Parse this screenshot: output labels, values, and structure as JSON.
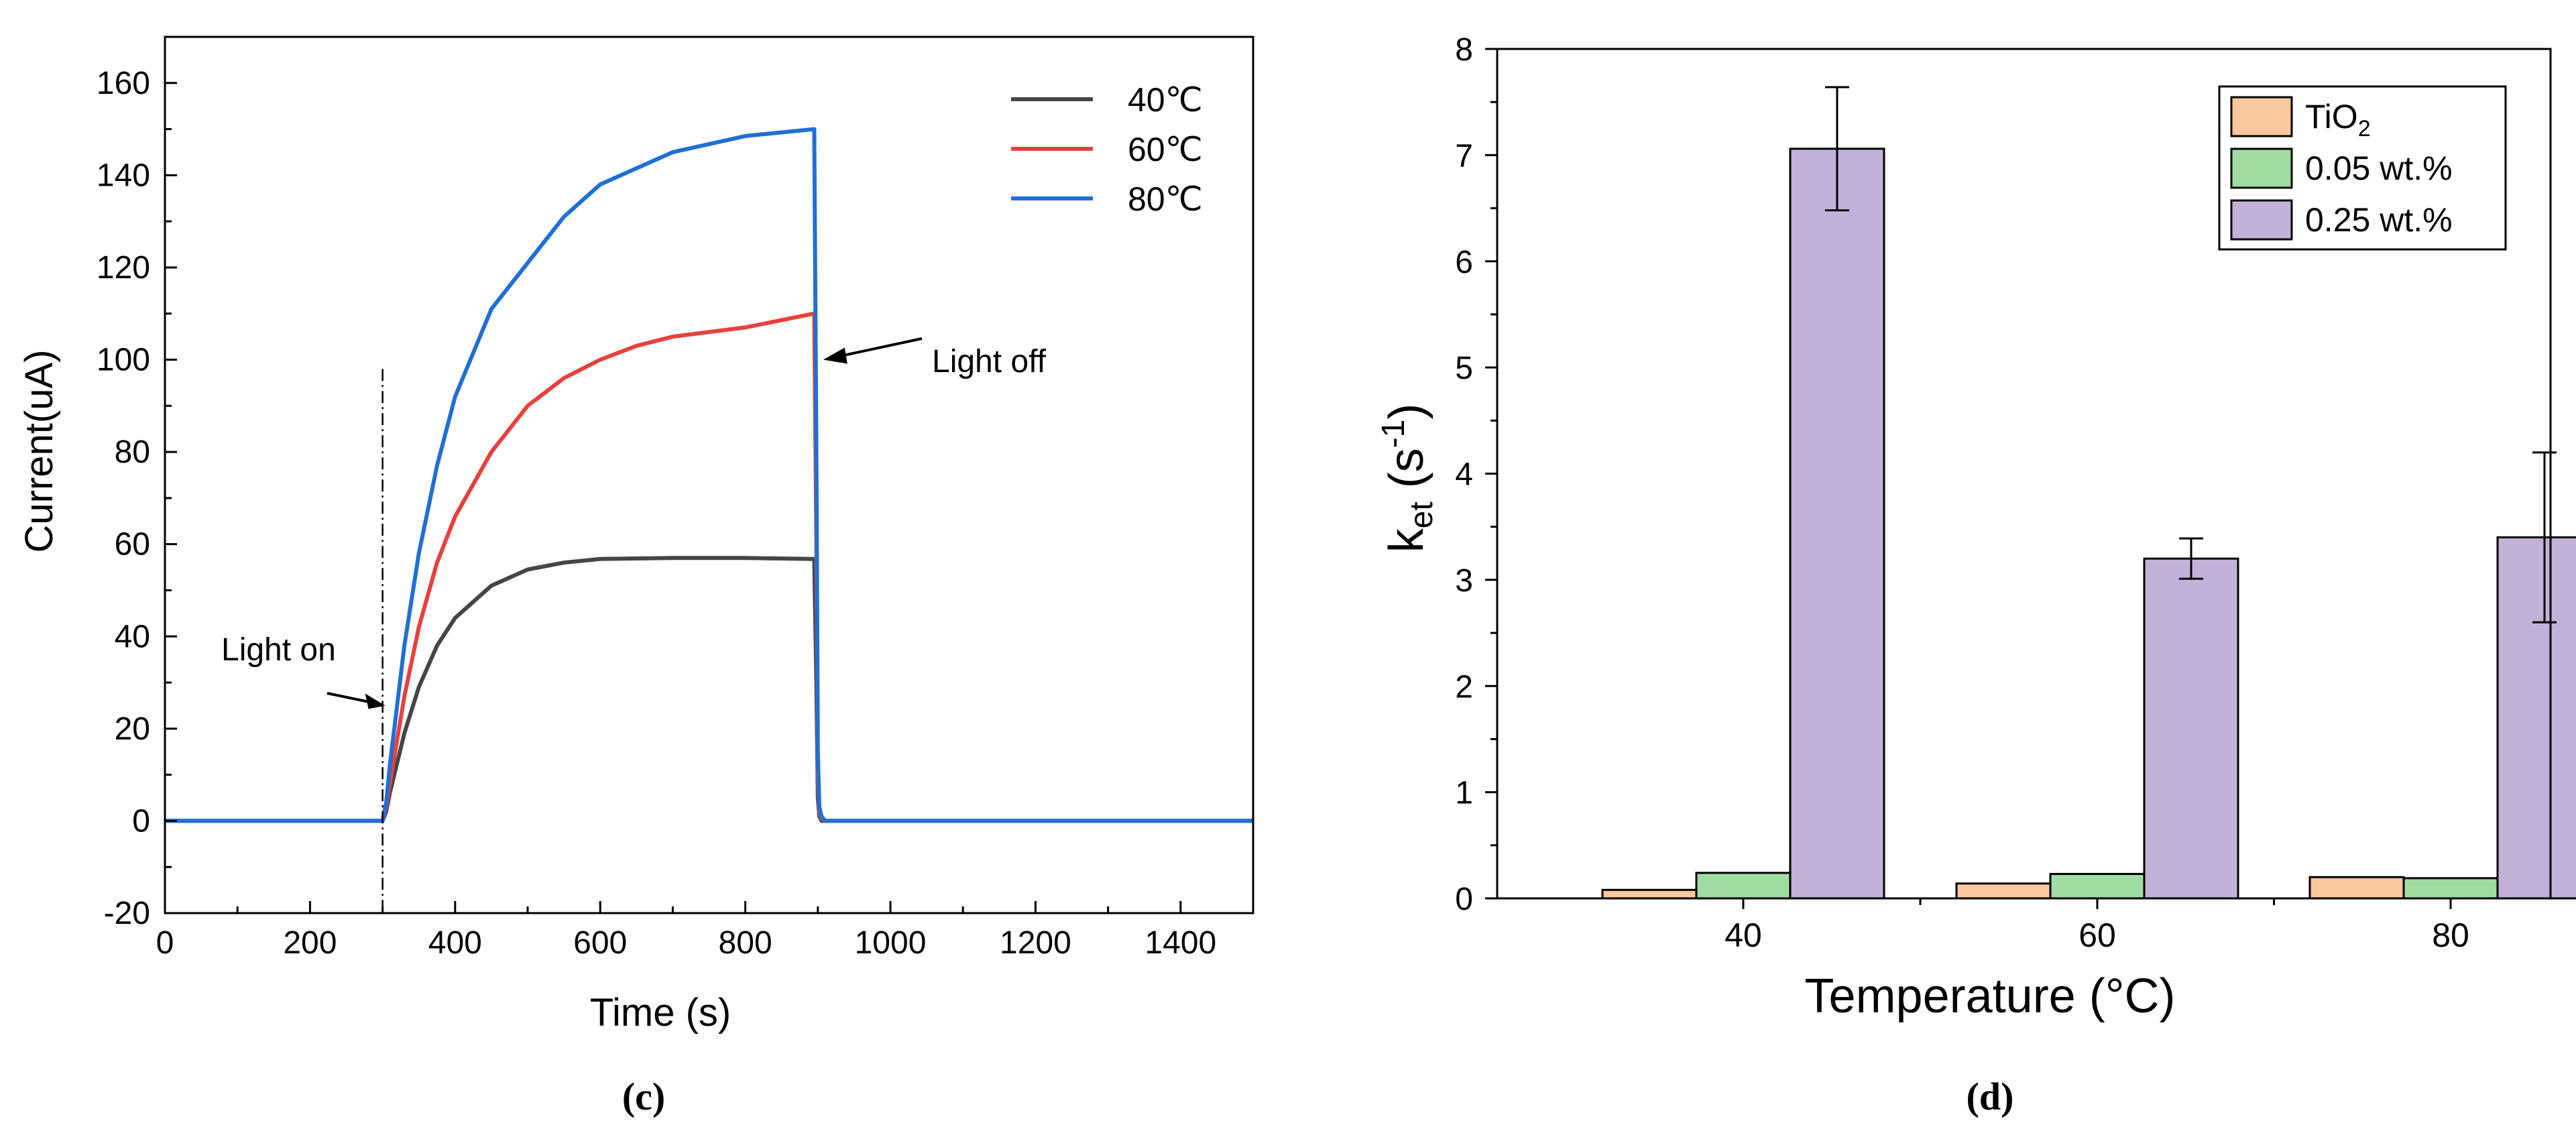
{
  "panels": {
    "c": {
      "label": "(c)"
    },
    "d": {
      "label": "(d)"
    }
  },
  "chart_data": [
    {
      "type": "line",
      "panel": "c",
      "title": "",
      "xlabel": "Time (s)",
      "ylabel": "Current(uA)",
      "xlim": [
        0,
        1500
      ],
      "ylim": [
        -20,
        170
      ],
      "xticks": [
        0,
        200,
        400,
        600,
        800,
        1000,
        1200,
        1400
      ],
      "yticks": [
        -20,
        0,
        20,
        40,
        60,
        80,
        100,
        120,
        140,
        160
      ],
      "grid": false,
      "legend_position": "top-right",
      "colors": {
        "40℃": "#454545",
        "60℃": "#e8403c",
        "80℃": "#1f6fd6"
      },
      "series": [
        {
          "name": "40℃",
          "x": [
            0,
            295,
            300,
            305,
            310,
            330,
            350,
            375,
            400,
            450,
            500,
            550,
            600,
            700,
            800,
            895,
            898,
            900,
            902,
            905,
            910,
            1500
          ],
          "y": [
            0,
            0,
            0,
            2,
            6,
            19,
            29,
            38,
            44,
            51,
            54.5,
            56,
            56.8,
            57,
            57,
            56.8,
            30,
            5,
            1,
            0,
            0,
            0
          ]
        },
        {
          "name": "60℃",
          "x": [
            0,
            295,
            300,
            305,
            310,
            330,
            350,
            375,
            400,
            450,
            500,
            550,
            600,
            650,
            700,
            800,
            895,
            898,
            900,
            902,
            905,
            910,
            1500
          ],
          "y": [
            0,
            0,
            0,
            3,
            8,
            27,
            42,
            56,
            66,
            80,
            90,
            96,
            100,
            103,
            105,
            107,
            110,
            60,
            10,
            2,
            0.5,
            0,
            0
          ]
        },
        {
          "name": "80℃",
          "x": [
            0,
            295,
            300,
            305,
            310,
            330,
            350,
            375,
            400,
            450,
            500,
            550,
            600,
            700,
            800,
            895,
            898,
            900,
            902,
            905,
            910,
            1500
          ],
          "y": [
            0,
            0,
            0,
            4,
            12,
            38,
            58,
            77,
            92,
            111,
            121,
            131,
            138,
            145,
            148.5,
            150,
            80,
            15,
            3,
            1,
            0,
            0
          ]
        }
      ],
      "vline": {
        "x": 300
      },
      "annotations": [
        {
          "text": "Light on",
          "x": 300,
          "y": 25
        },
        {
          "text": "Light off",
          "x": 900,
          "y": 100
        }
      ]
    },
    {
      "type": "bar",
      "panel": "d",
      "title": "",
      "xlabel": "Temperature (°C)",
      "ylabel_main": "k",
      "ylabel_sub": "et",
      "ylabel_unit_open": " (s",
      "ylabel_sup": "-1",
      "ylabel_unit_close": ")",
      "ylim": [
        0,
        8
      ],
      "yticks": [
        0,
        1,
        2,
        3,
        4,
        5,
        6,
        7,
        8
      ],
      "categories": [
        "40",
        "60",
        "80"
      ],
      "grid": false,
      "legend_position": "top-right",
      "series": [
        {
          "name_main": "TiO",
          "name_sub": "2",
          "color": "#f9c79c",
          "values": [
            0.08,
            0.14,
            0.2
          ],
          "errors": [
            0,
            0,
            0
          ]
        },
        {
          "name_main": "0.05 wt.%",
          "name_sub": "",
          "color": "#9fdca2",
          "values": [
            0.24,
            0.23,
            0.19
          ],
          "errors": [
            0,
            0,
            0
          ]
        },
        {
          "name_main": "0.25 wt.%",
          "name_sub": "",
          "color": "#c2b1d7",
          "values": [
            7.06,
            3.2,
            3.4
          ],
          "errors": [
            0.58,
            0.19,
            0.8
          ]
        }
      ]
    }
  ]
}
